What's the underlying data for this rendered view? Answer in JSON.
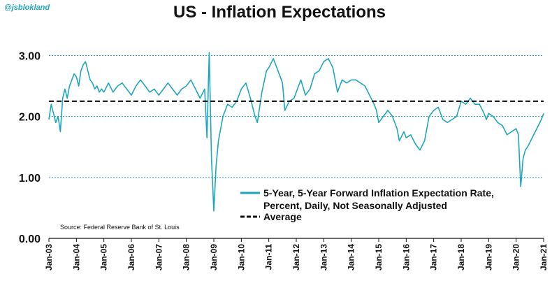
{
  "handle": "@jsblokland",
  "chart_data": {
    "type": "line",
    "title": "US - Inflation Expectations",
    "xlabel": "",
    "ylabel": "",
    "ylim": [
      0,
      3.2
    ],
    "xlim": [
      "2003-01",
      "2021-01"
    ],
    "yticks": [
      "0.00",
      "1.00",
      "2.00",
      "3.00"
    ],
    "xticks": [
      "Jan-03",
      "Jan-04",
      "Jan-05",
      "Jan-06",
      "Jan-07",
      "Jan-08",
      "Jan-09",
      "Jan-10",
      "Jan-11",
      "Jan-12",
      "Jan-13",
      "Jan-14",
      "Jan-15",
      "Jan-16",
      "Jan-17",
      "Jan-18",
      "Jan-19",
      "Jan-20",
      "Jan-21"
    ],
    "grid": "horizontal dotted",
    "legend_position": "bottom-right",
    "colors": {
      "series": "#1fa6bd",
      "average": "#111111",
      "grid": "#1fa6bd"
    },
    "source": "Source: Federal Reserve Bank of St. Louis",
    "series": [
      {
        "name": "5-Year, 5-Year Forward Inflation Expectation Rate, Percent, Daily, Not Seasonally Adjusted",
        "name_lines": [
          "5-Year, 5-Year Forward Inflation Expectation Rate,",
          "Percent, Daily, Not Seasonally Adjusted"
        ],
        "style": "solid",
        "points": [
          [
            "2003-01",
            1.95
          ],
          [
            "2003-02",
            2.2
          ],
          [
            "2003-03",
            2.05
          ],
          [
            "2003-04",
            1.9
          ],
          [
            "2003-05",
            2.0
          ],
          [
            "2003-06",
            1.75
          ],
          [
            "2003-07",
            2.3
          ],
          [
            "2003-08",
            2.45
          ],
          [
            "2003-09",
            2.3
          ],
          [
            "2003-10",
            2.5
          ],
          [
            "2003-11",
            2.6
          ],
          [
            "2003-12",
            2.7
          ],
          [
            "2004-01",
            2.65
          ],
          [
            "2004-02",
            2.5
          ],
          [
            "2004-03",
            2.75
          ],
          [
            "2004-04",
            2.85
          ],
          [
            "2004-05",
            2.9
          ],
          [
            "2004-06",
            2.75
          ],
          [
            "2004-07",
            2.6
          ],
          [
            "2004-08",
            2.55
          ],
          [
            "2004-09",
            2.45
          ],
          [
            "2004-10",
            2.5
          ],
          [
            "2004-11",
            2.4
          ],
          [
            "2004-12",
            2.45
          ],
          [
            "2005-01",
            2.4
          ],
          [
            "2005-03",
            2.55
          ],
          [
            "2005-05",
            2.4
          ],
          [
            "2005-07",
            2.5
          ],
          [
            "2005-09",
            2.55
          ],
          [
            "2005-11",
            2.45
          ],
          [
            "2006-01",
            2.35
          ],
          [
            "2006-03",
            2.5
          ],
          [
            "2006-05",
            2.6
          ],
          [
            "2006-07",
            2.5
          ],
          [
            "2006-09",
            2.4
          ],
          [
            "2006-11",
            2.45
          ],
          [
            "2007-01",
            2.35
          ],
          [
            "2007-03",
            2.45
          ],
          [
            "2007-05",
            2.55
          ],
          [
            "2007-07",
            2.45
          ],
          [
            "2007-09",
            2.35
          ],
          [
            "2007-11",
            2.45
          ],
          [
            "2008-01",
            2.5
          ],
          [
            "2008-03",
            2.6
          ],
          [
            "2008-05",
            2.45
          ],
          [
            "2008-07",
            2.3
          ],
          [
            "2008-09",
            2.45
          ],
          [
            "2008-10",
            1.65
          ],
          [
            "2008-11",
            3.05
          ],
          [
            "2008-12",
            1.3
          ],
          [
            "2009-01",
            0.45
          ],
          [
            "2009-02",
            1.2
          ],
          [
            "2009-03",
            1.6
          ],
          [
            "2009-05",
            2.0
          ],
          [
            "2009-07",
            2.2
          ],
          [
            "2009-09",
            2.15
          ],
          [
            "2009-11",
            2.25
          ],
          [
            "2010-01",
            2.45
          ],
          [
            "2010-03",
            2.55
          ],
          [
            "2010-05",
            2.3
          ],
          [
            "2010-07",
            2.0
          ],
          [
            "2010-08",
            1.9
          ],
          [
            "2010-10",
            2.4
          ],
          [
            "2010-12",
            2.75
          ],
          [
            "2011-01",
            2.8
          ],
          [
            "2011-03",
            2.95
          ],
          [
            "2011-05",
            2.75
          ],
          [
            "2011-07",
            2.55
          ],
          [
            "2011-08",
            2.1
          ],
          [
            "2011-10",
            2.25
          ],
          [
            "2011-12",
            2.3
          ],
          [
            "2012-01",
            2.4
          ],
          [
            "2012-03",
            2.6
          ],
          [
            "2012-05",
            2.35
          ],
          [
            "2012-07",
            2.45
          ],
          [
            "2012-09",
            2.7
          ],
          [
            "2012-11",
            2.75
          ],
          [
            "2013-01",
            2.9
          ],
          [
            "2013-03",
            2.95
          ],
          [
            "2013-05",
            2.8
          ],
          [
            "2013-07",
            2.4
          ],
          [
            "2013-09",
            2.6
          ],
          [
            "2013-11",
            2.55
          ],
          [
            "2014-01",
            2.6
          ],
          [
            "2014-03",
            2.6
          ],
          [
            "2014-05",
            2.55
          ],
          [
            "2014-07",
            2.5
          ],
          [
            "2014-09",
            2.35
          ],
          [
            "2014-11",
            2.2
          ],
          [
            "2014-12",
            2.1
          ],
          [
            "2015-01",
            1.9
          ],
          [
            "2015-03",
            2.0
          ],
          [
            "2015-05",
            2.1
          ],
          [
            "2015-07",
            2.0
          ],
          [
            "2015-09",
            1.8
          ],
          [
            "2015-10",
            1.6
          ],
          [
            "2015-12",
            1.75
          ],
          [
            "2016-01",
            1.65
          ],
          [
            "2016-03",
            1.7
          ],
          [
            "2016-05",
            1.55
          ],
          [
            "2016-07",
            1.45
          ],
          [
            "2016-09",
            1.6
          ],
          [
            "2016-11",
            2.0
          ],
          [
            "2017-01",
            2.1
          ],
          [
            "2017-03",
            2.15
          ],
          [
            "2017-05",
            1.95
          ],
          [
            "2017-07",
            1.9
          ],
          [
            "2017-09",
            1.95
          ],
          [
            "2017-11",
            2.0
          ],
          [
            "2018-01",
            2.25
          ],
          [
            "2018-03",
            2.2
          ],
          [
            "2018-05",
            2.3
          ],
          [
            "2018-07",
            2.2
          ],
          [
            "2018-09",
            2.2
          ],
          [
            "2018-11",
            2.05
          ],
          [
            "2018-12",
            1.95
          ],
          [
            "2019-01",
            2.05
          ],
          [
            "2019-03",
            2.0
          ],
          [
            "2019-05",
            1.9
          ],
          [
            "2019-07",
            1.85
          ],
          [
            "2019-09",
            1.7
          ],
          [
            "2019-11",
            1.75
          ],
          [
            "2020-01",
            1.8
          ],
          [
            "2020-02",
            1.7
          ],
          [
            "2020-03",
            0.85
          ],
          [
            "2020-04",
            1.3
          ],
          [
            "2020-05",
            1.45
          ],
          [
            "2020-06",
            1.5
          ],
          [
            "2020-08",
            1.65
          ],
          [
            "2020-10",
            1.8
          ],
          [
            "2020-12",
            1.95
          ],
          [
            "2021-01",
            2.05
          ]
        ]
      },
      {
        "name": "Average",
        "style": "dashed",
        "points": [
          [
            "2003-01",
            2.25
          ],
          [
            "2021-01",
            2.25
          ]
        ]
      }
    ]
  }
}
